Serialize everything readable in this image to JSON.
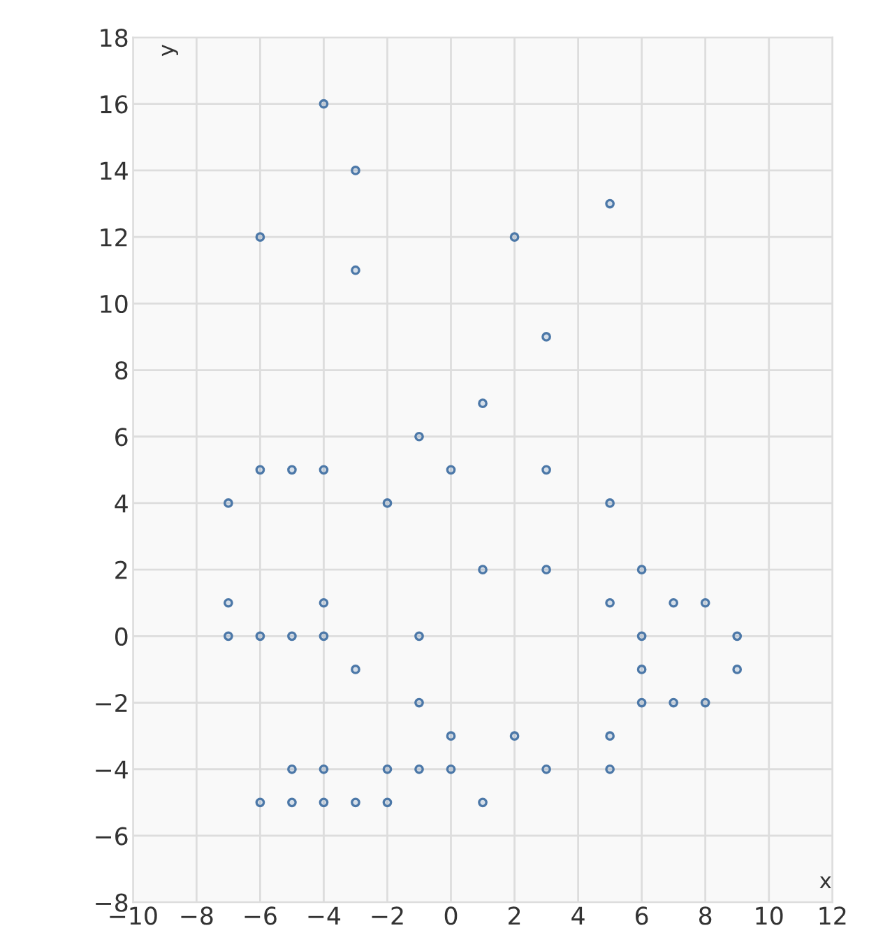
{
  "chart_data": {
    "type": "scatter",
    "xlabel": "x",
    "ylabel": "y",
    "x": [
      -4,
      -3,
      5,
      -6,
      2,
      -3,
      3,
      1,
      -1,
      -6,
      -5,
      -4,
      0,
      3,
      -7,
      -2,
      5,
      1,
      3,
      6,
      -7,
      -4,
      5,
      7,
      8,
      -7,
      -6,
      -5,
      -4,
      -1,
      6,
      9,
      -3,
      6,
      9,
      -1,
      6,
      7,
      8,
      0,
      2,
      5,
      -5,
      -4,
      -2,
      -1,
      0,
      3,
      5,
      -6,
      -5,
      -4,
      -3,
      -2,
      1
    ],
    "values": [
      16,
      14,
      13,
      12,
      12,
      11,
      9,
      7,
      6,
      5,
      5,
      5,
      5,
      5,
      4,
      4,
      4,
      2,
      2,
      2,
      1,
      1,
      1,
      1,
      1,
      0,
      0,
      0,
      0,
      0,
      0,
      0,
      -1,
      -1,
      -1,
      -2,
      -2,
      -2,
      -2,
      -3,
      -3,
      -3,
      -4,
      -4,
      -4,
      -4,
      -4,
      -4,
      -4,
      -5,
      -5,
      -5,
      -5,
      -5,
      -5
    ],
    "color": "#4c78a8",
    "marker": "circle",
    "xlim": [
      -10,
      12
    ],
    "ylim": [
      -8,
      18
    ],
    "xticks": [
      -10,
      -8,
      -6,
      -4,
      -2,
      0,
      2,
      4,
      6,
      8,
      10,
      12
    ],
    "yticks": [
      -8,
      -6,
      -4,
      -2,
      0,
      2,
      4,
      6,
      8,
      10,
      12,
      14,
      16,
      18
    ],
    "grid": true
  }
}
